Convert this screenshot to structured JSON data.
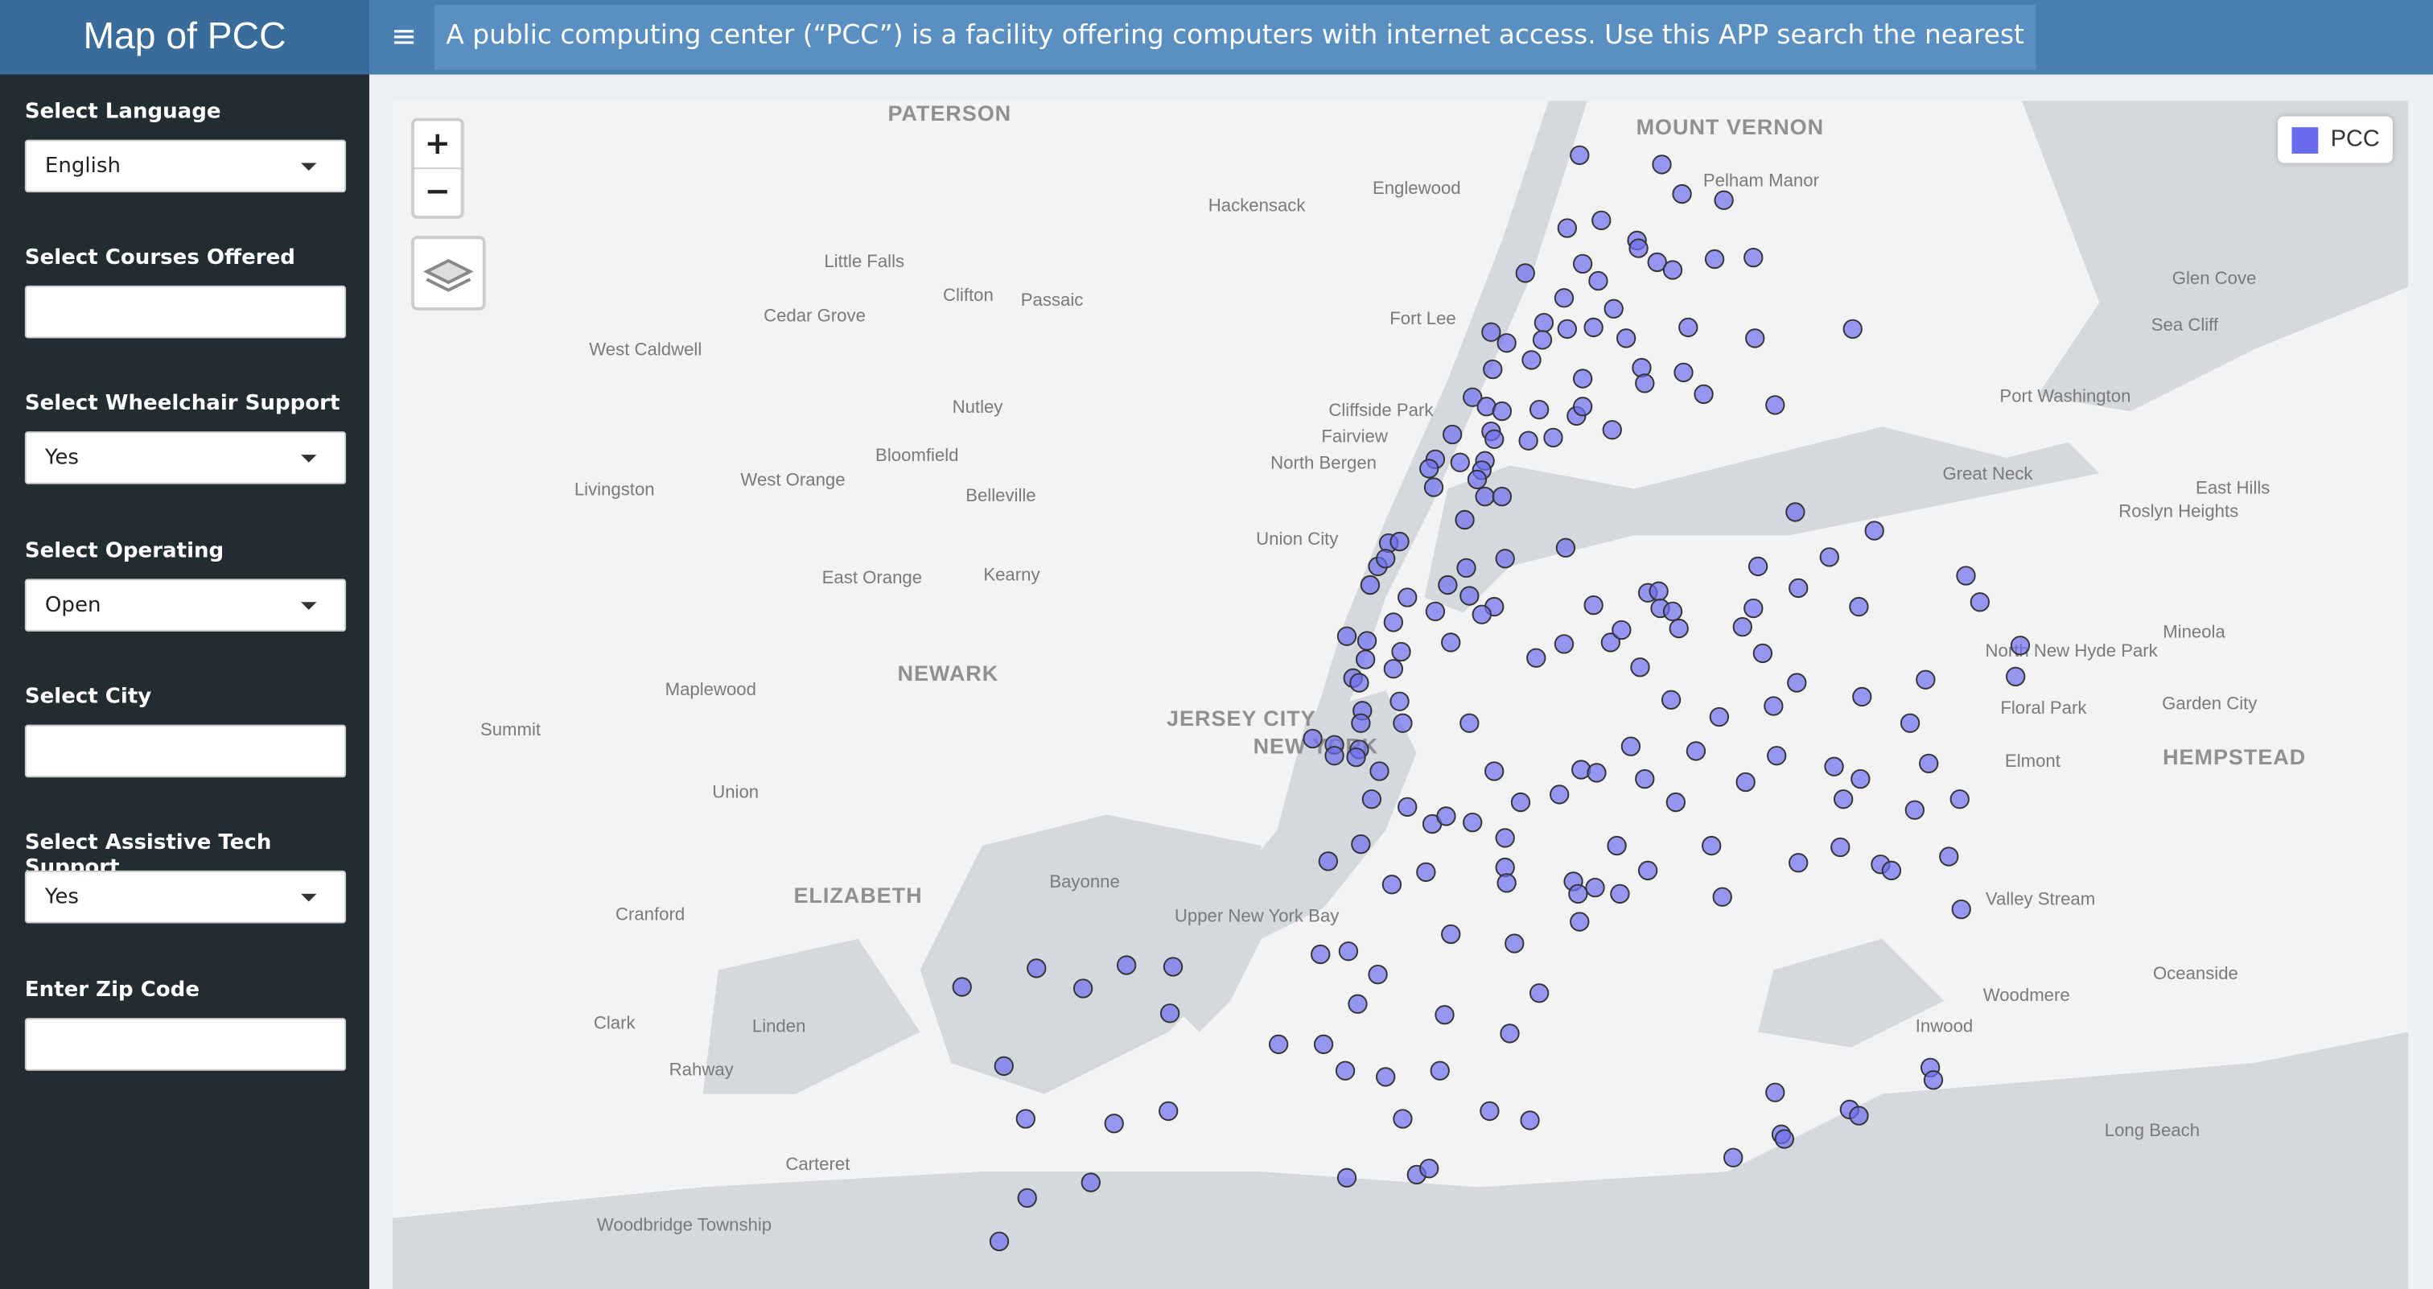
{
  "header": {
    "title": "Map of PCC",
    "menu_icon": "≡",
    "banner": "A public computing center (“PCC”) is a facility offering computers with internet access. Use this APP search the nearest PCC to you!"
  },
  "sidebar": {
    "fields": [
      {
        "label": "Select Language",
        "value": "English"
      },
      {
        "label": "Select Courses Offered"
      },
      {
        "label": "Select Wheelchair Support",
        "value": "Yes"
      },
      {
        "label": "Select Operating",
        "value": "Open"
      },
      {
        "label": "Select City"
      },
      {
        "label": "Select Assistive Tech Support",
        "value": "Yes"
      },
      {
        "label": "Enter Zip Code"
      }
    ]
  },
  "map": {
    "zoom_in": "+",
    "zoom_out": "−",
    "legend": "PCC",
    "labels": [
      "PATERSON",
      "MOUNT VERNON",
      "Pelham Manor",
      "Hackensack",
      "Englewood",
      "Little Falls",
      "Clifton",
      "Passaic",
      "Cedar Grove",
      "West Caldwell",
      "Fort Lee",
      "Glen Cove",
      "Sea Cliff",
      "Port Washington",
      "Nutley",
      "Cliffside Park",
      "Fairview",
      "North Bergen",
      "Bloomfield",
      "Livingston",
      "West Orange",
      "Belleville",
      "Great Neck",
      "East Hills",
      "Roslyn Heights",
      "Union City",
      "East Orange",
      "Kearny",
      "Mineola",
      "North New Hyde Park",
      "NEWARK",
      "Maplewood",
      "JERSEY CITY",
      "NEW YORK",
      "Floral Park",
      "Garden City",
      "Summit",
      "Elmont",
      "HEMPSTEAD",
      "Union",
      "Bayonne",
      "ELIZABETH",
      "Valley Stream",
      "Cranford",
      "Upper New York Bay",
      "Oceanside",
      "Woodmere",
      "Clark",
      "Linden",
      "Inwood",
      "Rahway",
      "Long Beach",
      "Carteret",
      "Woodbridge Township"
    ]
  }
}
